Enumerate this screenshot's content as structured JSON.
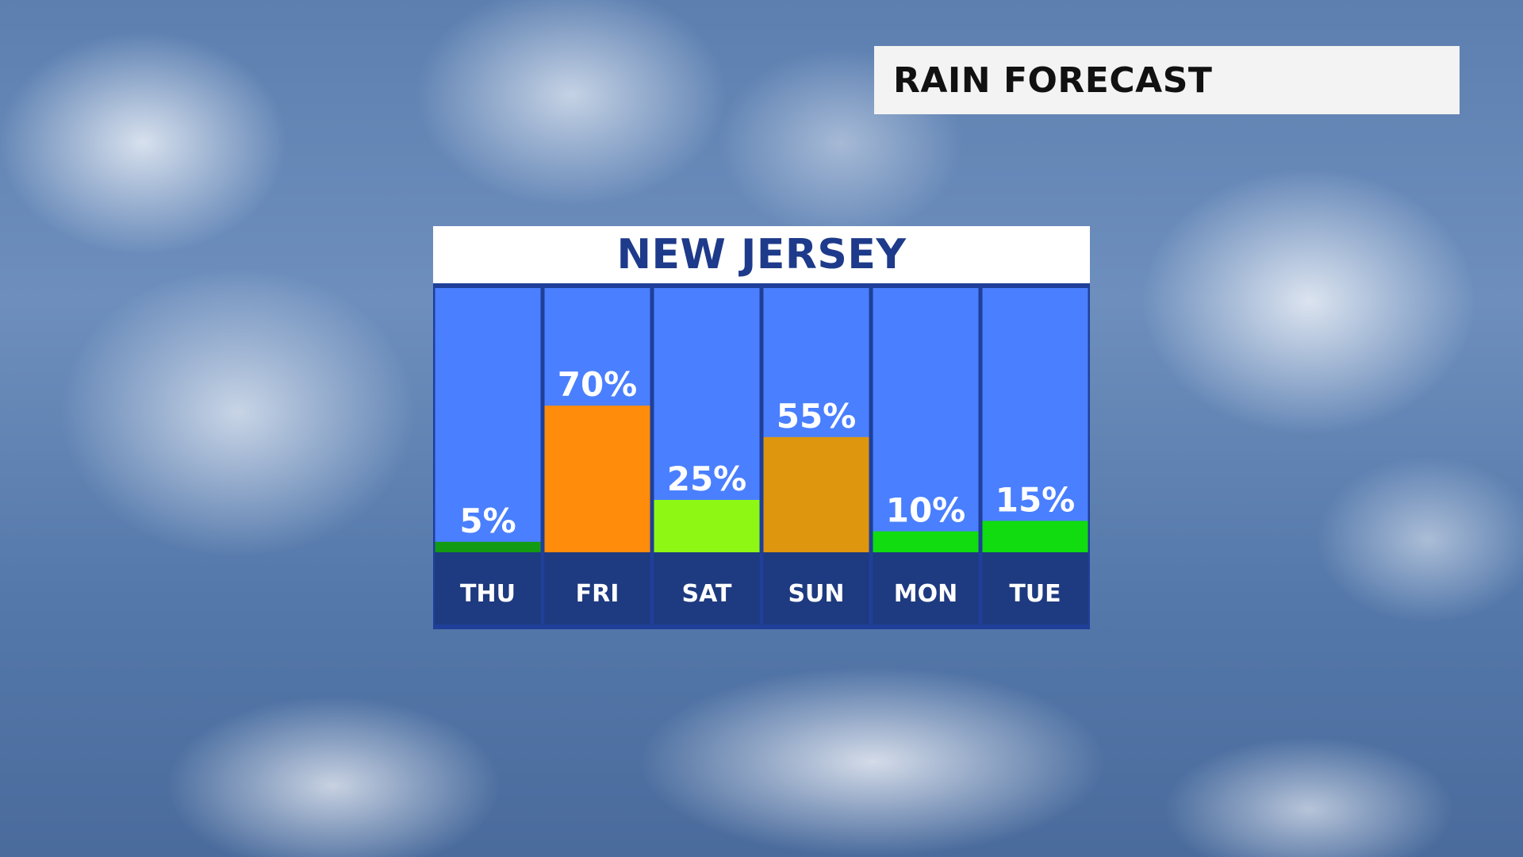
{
  "header": {
    "title": "RAIN FORECAST"
  },
  "panel": {
    "title": "NEW JERSEY"
  },
  "colors": {
    "column_bg": "#4a7fff",
    "column_border": "#1f3f99",
    "day_bar_bg": "#1e3a80",
    "panel_title_text": "#1e3a8a"
  },
  "chart_data": {
    "type": "bar",
    "title": "",
    "categories": [
      "THU",
      "FRI",
      "SAT",
      "SUN",
      "MON",
      "TUE"
    ],
    "values": [
      5,
      70,
      25,
      55,
      10,
      15
    ],
    "value_labels": [
      "5%",
      "70%",
      "25%",
      "55%",
      "10%",
      "15%"
    ],
    "bar_colors": [
      "#129a12",
      "#ff8c0a",
      "#8ef814",
      "#dd960e",
      "#10dc10",
      "#10dc10"
    ],
    "unit": "%",
    "ylim": [
      0,
      100
    ],
    "grid": false,
    "legend": "none"
  }
}
